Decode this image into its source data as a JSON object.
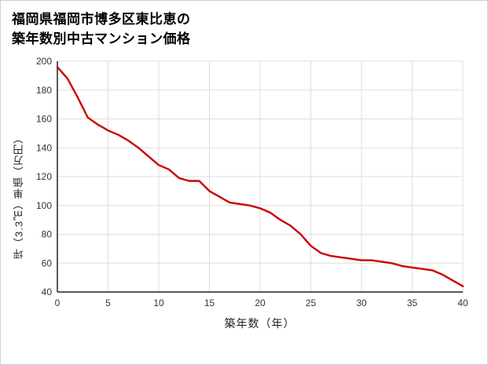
{
  "header": {
    "title_line1": "福岡県福岡市博多区東比恵の",
    "title_line2": "築年数別中古マンション価格"
  },
  "chart_data": {
    "type": "line",
    "title": "福岡県福岡市博多区東比恵の築年数別中古マンション価格",
    "xlabel": "築年数（年）",
    "ylabel": "坪（3.3㎡）単価（万円）",
    "xlim": [
      0,
      40
    ],
    "ylim": [
      40,
      200
    ],
    "xticks": [
      0,
      5,
      10,
      15,
      20,
      25,
      30,
      35,
      40
    ],
    "yticks": [
      40,
      60,
      80,
      100,
      120,
      140,
      160,
      180,
      200
    ],
    "grid": true,
    "legend": "none",
    "line_color": "#cc0000",
    "grid_color": "#dddddd",
    "axis_color": "#222222",
    "tick_color": "#333333",
    "x": [
      0,
      1,
      2,
      3,
      4,
      5,
      6,
      7,
      8,
      9,
      10,
      11,
      12,
      13,
      14,
      15,
      16,
      17,
      18,
      19,
      20,
      21,
      22,
      23,
      24,
      25,
      26,
      27,
      28,
      29,
      30,
      31,
      32,
      33,
      34,
      35,
      36,
      37,
      38,
      39,
      40
    ],
    "y": [
      196,
      188,
      175,
      161,
      156,
      152,
      149,
      145,
      140,
      134,
      128,
      125,
      119,
      117,
      117,
      110,
      106,
      102,
      101,
      100,
      98,
      95,
      90,
      86,
      80,
      72,
      67,
      65,
      64,
      63,
      62,
      62,
      61,
      60,
      58,
      57,
      56,
      55,
      52,
      48,
      44
    ]
  }
}
